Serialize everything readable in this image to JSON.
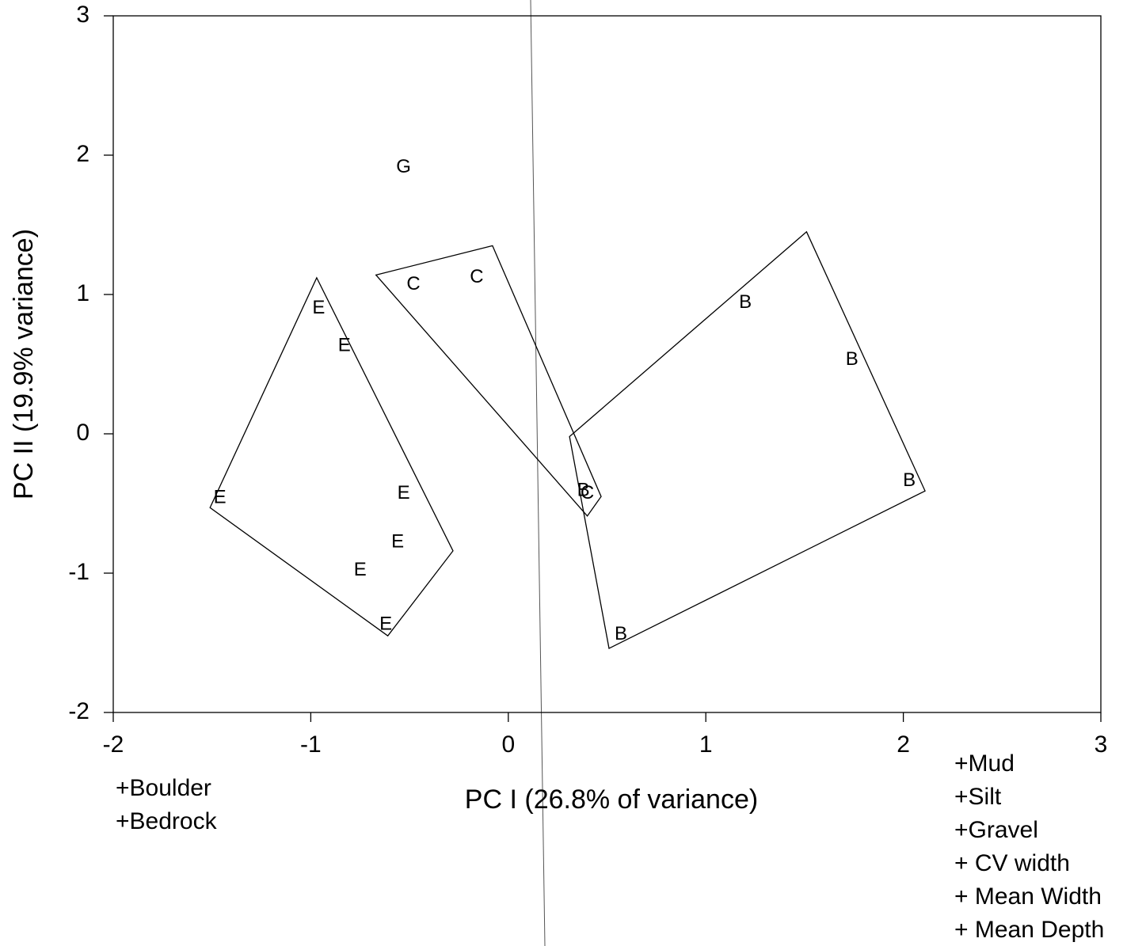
{
  "chart_data": {
    "type": "scatter",
    "xlabel": "PC I (26.8% of variance)",
    "ylabel": "PC II (19.9% variance)",
    "xlim": [
      -2,
      3
    ],
    "ylim": [
      -2,
      3
    ],
    "xticks": [
      -2,
      -1,
      0,
      1,
      2,
      3
    ],
    "yticks": [
      -2,
      -1,
      0,
      1,
      2,
      3
    ],
    "color": "#000000",
    "series": [
      {
        "name": "G",
        "x": [
          -0.53
        ],
        "values": [
          1.91
        ]
      },
      {
        "name": "C",
        "x": [
          -0.48,
          -0.16,
          0.4
        ],
        "values": [
          1.07,
          1.12,
          -0.43
        ]
      },
      {
        "name": "E",
        "x": [
          -0.96,
          -0.83,
          -1.46,
          -0.53,
          -0.56,
          -0.75,
          -0.62
        ],
        "values": [
          0.9,
          0.63,
          -0.46,
          -0.43,
          -0.78,
          -0.98,
          -1.37
        ]
      },
      {
        "name": "B",
        "x": [
          1.2,
          1.74,
          2.03,
          0.57,
          0.38
        ],
        "values": [
          0.94,
          0.53,
          -0.34,
          -1.44,
          -0.41
        ]
      }
    ],
    "hulls": [
      {
        "x": [
          -0.97,
          -0.28,
          -0.61,
          -1.51
        ],
        "y": [
          1.12,
          -0.84,
          -1.45,
          -0.53
        ]
      },
      {
        "x": [
          -0.67,
          -0.08,
          0.47,
          0.4
        ],
        "y": [
          1.14,
          1.35,
          -0.45,
          -0.59
        ]
      },
      {
        "x": [
          1.51,
          2.11,
          0.51,
          0.31
        ],
        "y": [
          1.45,
          -0.41,
          -1.54,
          -0.02
        ]
      }
    ],
    "annotations": {
      "left": [
        "+Boulder",
        "+Bedrock"
      ],
      "right": [
        "+Mud",
        "+Silt",
        "+Gravel",
        "+ CV width",
        "+ Mean Width",
        "+ Mean Depth"
      ]
    }
  }
}
